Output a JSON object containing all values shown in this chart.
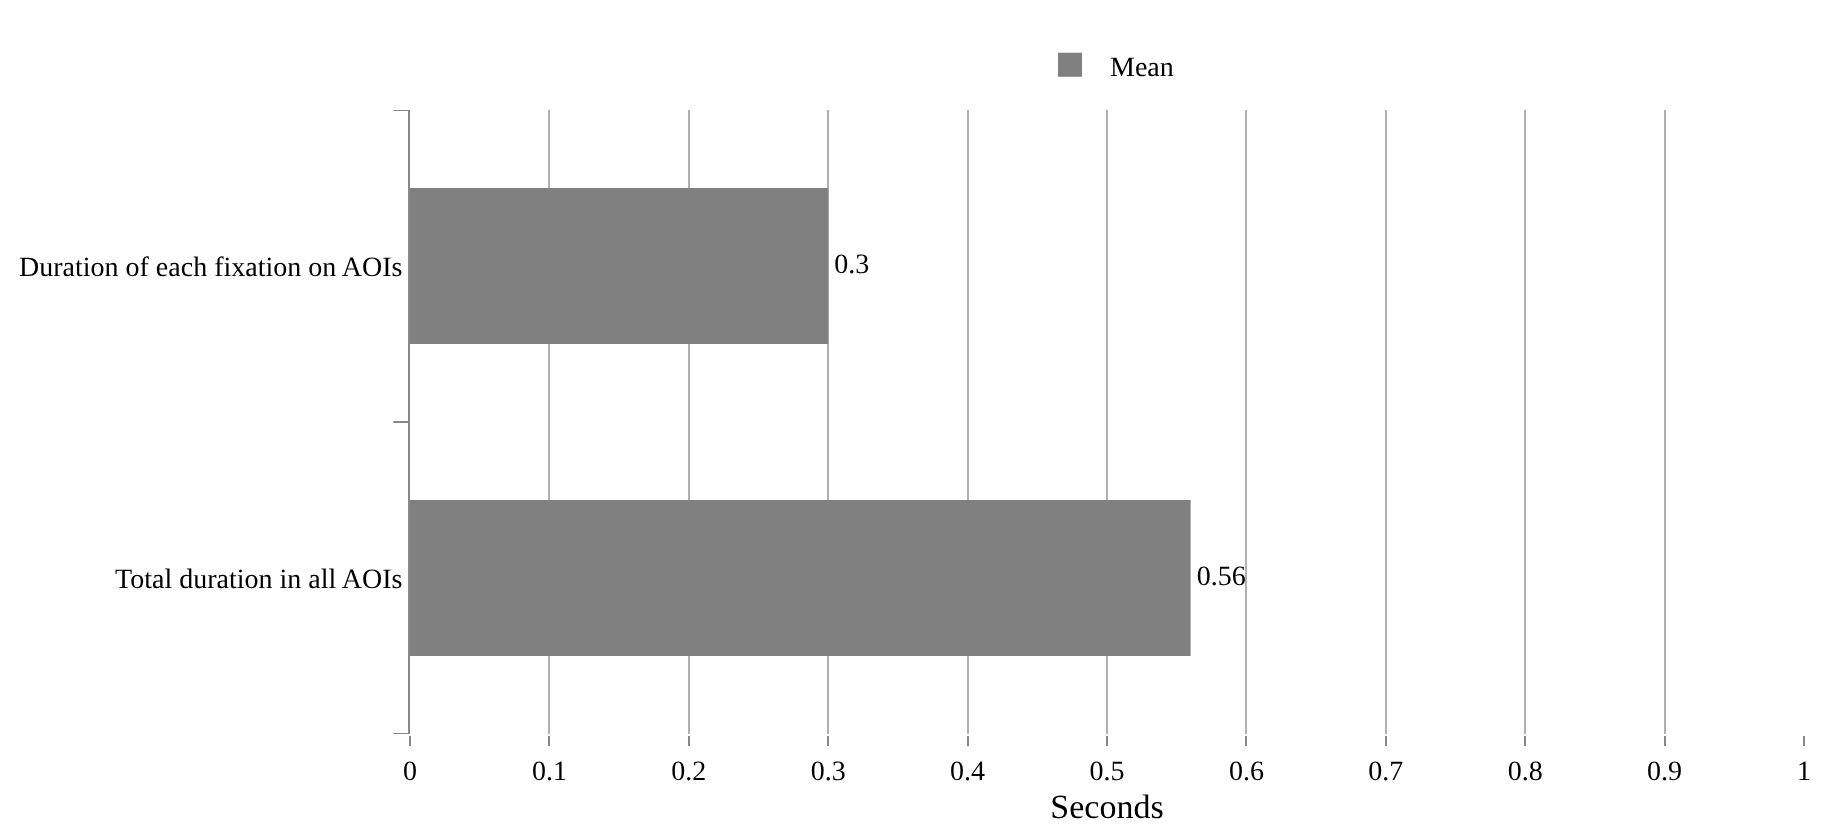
{
  "chart_data": {
    "type": "bar",
    "orientation": "horizontal",
    "categories": [
      "Duration of each fixation on AOIs",
      "Total duration in all AOIs"
    ],
    "series": [
      {
        "name": "Mean",
        "color": "#808080",
        "values": [
          0.3,
          0.56
        ]
      }
    ],
    "xlabel": "Seconds",
    "xlim": [
      0,
      1
    ],
    "xticks": [
      0,
      0.1,
      0.2,
      0.3,
      0.4,
      0.5,
      0.6,
      0.7,
      0.8,
      0.9,
      1
    ],
    "grid": "x",
    "legend": "top",
    "data_labels": true
  }
}
